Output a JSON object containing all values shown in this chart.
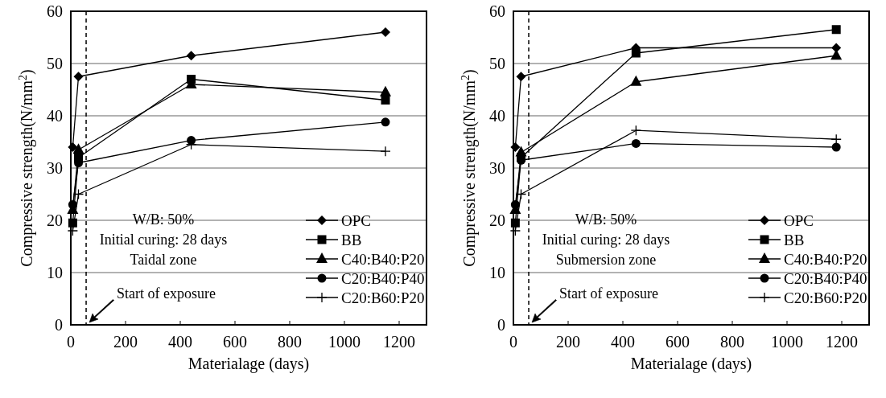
{
  "chart_data": [
    {
      "type": "line",
      "xlabel": "Materialage (days)",
      "ylabel": "Compressive strength(N/mm$^{2}$)",
      "xlim": [
        0,
        1300
      ],
      "xticks": [
        0,
        200,
        400,
        600,
        800,
        1000,
        1200
      ],
      "ylim": [
        0,
        60
      ],
      "yticks": [
        0,
        10,
        20,
        30,
        40,
        50,
        60
      ],
      "grid": "y",
      "legend": "bottom right",
      "x": [
        7,
        28,
        440,
        1150
      ],
      "series": [
        {
          "name": "OPC",
          "color": "#000000",
          "marker": "diamond",
          "values": [
            34,
            47.5,
            51.5,
            56
          ]
        },
        {
          "name": "BB",
          "color": "#000000",
          "marker": "square",
          "values": [
            19.5,
            32,
            47,
            43
          ]
        },
        {
          "name": "C40:B40:P20",
          "color": "#000000",
          "marker": "triangle",
          "values": [
            22,
            33.5,
            46,
            44.5
          ]
        },
        {
          "name": "C20:B40:P40",
          "color": "#000000",
          "marker": "circle",
          "values": [
            23,
            31,
            35.3,
            38.8
          ]
        },
        {
          "name": "C20:B60:P20",
          "color": "#000000",
          "marker": "cross",
          "values": [
            18,
            25,
            34.5,
            33.2
          ]
        }
      ],
      "ref_lines": [
        {
          "axis": "x",
          "value": 56,
          "line_style": "dashed",
          "color": "#000000"
        }
      ],
      "annotations": [
        "W/B: 50%",
        "Initial curing: 28 days",
        "Taidal zone",
        {
          "text": "Start of exposure",
          "x": 56,
          "y": 0
        }
      ]
    },
    {
      "type": "line",
      "xlabel": "Materialage (days)",
      "ylabel": "Compressive strength(N/mm$^{2}$)",
      "xlim": [
        0,
        1300
      ],
      "xticks": [
        0,
        200,
        400,
        600,
        800,
        1000,
        1200
      ],
      "ylim": [
        0,
        60
      ],
      "yticks": [
        0,
        10,
        20,
        30,
        40,
        50,
        60
      ],
      "grid": "y",
      "legend": "bottom right",
      "x": [
        7,
        28,
        448,
        1180
      ],
      "series": [
        {
          "name": "OPC",
          "color": "#000000",
          "marker": "diamond",
          "values": [
            34,
            47.5,
            53,
            53
          ]
        },
        {
          "name": "BB",
          "color": "#000000",
          "marker": "square",
          "values": [
            19.5,
            32,
            52,
            56.5
          ]
        },
        {
          "name": "C40:B40:P20",
          "color": "#000000",
          "marker": "triangle",
          "values": [
            22,
            33,
            46.5,
            51.5
          ]
        },
        {
          "name": "C20:B40:P40",
          "color": "#000000",
          "marker": "circle",
          "values": [
            23,
            31.5,
            34.7,
            34
          ]
        },
        {
          "name": "C20:B60:P20",
          "color": "#000000",
          "marker": "cross",
          "values": [
            18,
            25,
            37.2,
            35.5
          ]
        }
      ],
      "ref_lines": [
        {
          "axis": "x",
          "value": 56,
          "line_style": "dashed",
          "color": "#000000"
        }
      ],
      "annotations": [
        "W/B: 50%",
        "Initial curing: 28 days",
        "Submersion zone",
        {
          "text": "Start of exposure",
          "x": 56,
          "y": 0
        }
      ]
    }
  ]
}
